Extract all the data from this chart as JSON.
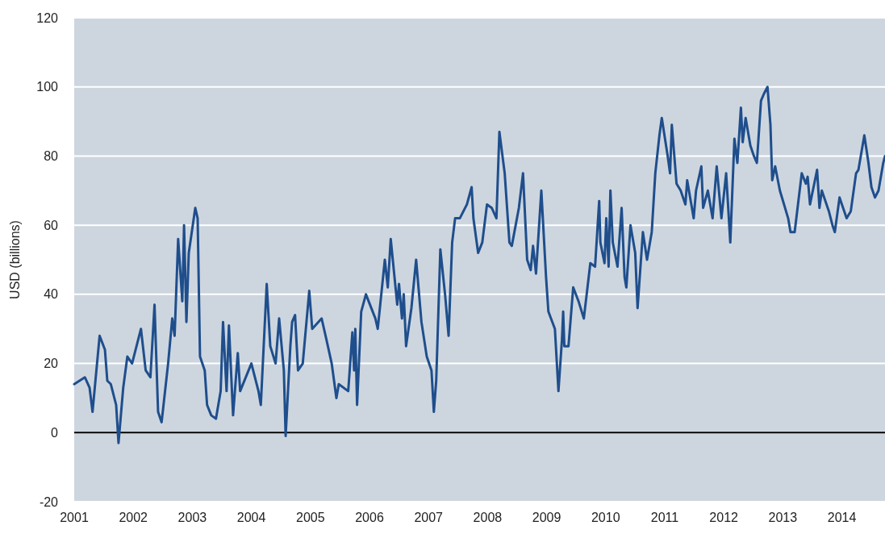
{
  "chart_data": {
    "type": "line",
    "ylabel": "USD (billions)",
    "xlim": [
      2001,
      2014.73
    ],
    "xticks": [
      2001,
      2002,
      2003,
      2004,
      2005,
      2006,
      2007,
      2008,
      2009,
      2010,
      2011,
      2012,
      2013,
      2014
    ],
    "ylim": [
      -20,
      120
    ],
    "yticks": [
      -20,
      0,
      20,
      40,
      60,
      80,
      100,
      120
    ],
    "grid": "y",
    "ref_lines": [
      {
        "axis": "y",
        "value": 0,
        "color": "#000000"
      }
    ],
    "series": [
      {
        "color": "#1f4e8c",
        "x": [
          2001.0,
          2001.18,
          2001.26,
          2001.31,
          2001.43,
          2001.52,
          2001.56,
          2001.62,
          2001.71,
          2001.75,
          2001.83,
          2001.9,
          2001.98,
          2002.13,
          2002.21,
          2002.29,
          2002.36,
          2002.42,
          2002.48,
          2002.59,
          2002.66,
          2002.7,
          2002.76,
          2002.83,
          2002.86,
          2002.9,
          2002.94,
          2003.05,
          2003.09,
          2003.13,
          2003.21,
          2003.25,
          2003.32,
          2003.4,
          2003.48,
          2003.52,
          2003.58,
          2003.62,
          2003.69,
          2003.77,
          2003.81,
          2004.0,
          2004.12,
          2004.16,
          2004.26,
          2004.32,
          2004.41,
          2004.47,
          2004.55,
          2004.58,
          2004.66,
          2004.69,
          2004.74,
          2004.79,
          2004.87,
          2004.98,
          2005.03,
          2005.19,
          2005.27,
          2005.36,
          2005.44,
          2005.48,
          2005.64,
          2005.71,
          2005.74,
          2005.76,
          2005.79,
          2005.86,
          2005.94,
          2006.1,
          2006.14,
          2006.26,
          2006.31,
          2006.36,
          2006.47,
          2006.5,
          2006.55,
          2006.58,
          2006.62,
          2006.71,
          2006.79,
          2006.88,
          2006.97,
          2007.05,
          2007.09,
          2007.13,
          2007.2,
          2007.28,
          2007.34,
          2007.4,
          2007.45,
          2007.53,
          2007.65,
          2007.73,
          2007.76,
          2007.84,
          2007.91,
          2007.99,
          2008.07,
          2008.15,
          2008.2,
          2008.29,
          2008.37,
          2008.41,
          2008.53,
          2008.6,
          2008.67,
          2008.73,
          2008.77,
          2008.82,
          2008.91,
          2008.99,
          2009.03,
          2009.14,
          2009.2,
          2009.26,
          2009.28,
          2009.3,
          2009.37,
          2009.45,
          2009.54,
          2009.63,
          2009.74,
          2009.82,
          2009.89,
          2009.91,
          2009.98,
          2010.01,
          2010.05,
          2010.08,
          2010.12,
          2010.2,
          2010.27,
          2010.32,
          2010.35,
          2010.42,
          2010.5,
          2010.54,
          2010.63,
          2010.7,
          2010.78,
          2010.84,
          2010.91,
          2010.95,
          2011.05,
          2011.09,
          2011.12,
          2011.2,
          2011.27,
          2011.35,
          2011.38,
          2011.49,
          2011.53,
          2011.62,
          2011.65,
          2011.73,
          2011.81,
          2011.88,
          2011.96,
          2012.04,
          2012.11,
          2012.18,
          2012.23,
          2012.29,
          2012.32,
          2012.37,
          2012.45,
          2012.51,
          2012.56,
          2012.63,
          2012.68,
          2012.74,
          2012.79,
          2012.82,
          2012.87,
          2012.95,
          2013.09,
          2013.13,
          2013.2,
          2013.32,
          2013.39,
          2013.42,
          2013.46,
          2013.58,
          2013.62,
          2013.66,
          2013.78,
          2013.84,
          2013.88,
          2013.96,
          2014.08,
          2014.15,
          2014.24,
          2014.28,
          2014.38,
          2014.45,
          2014.5,
          2014.56,
          2014.62,
          2014.7,
          2014.73
        ],
        "values": [
          14,
          16,
          13,
          6,
          28,
          24,
          15,
          14,
          8,
          -3,
          13,
          22,
          20,
          30,
          18,
          16,
          37,
          6,
          3,
          20,
          33,
          28,
          56,
          38,
          60,
          32,
          52,
          65,
          62,
          22,
          18,
          8,
          5,
          4,
          12,
          32,
          12,
          31,
          5,
          23,
          12,
          20,
          12,
          8,
          43,
          25,
          20,
          33,
          18,
          -1,
          25,
          32,
          34,
          18,
          20,
          41,
          30,
          33,
          27,
          20,
          10,
          14,
          12,
          29,
          18,
          30,
          8,
          35,
          40,
          33,
          30,
          50,
          42,
          56,
          37,
          43,
          33,
          40,
          25,
          36,
          50,
          32,
          22,
          18,
          6,
          15,
          53,
          40,
          28,
          55,
          62,
          62,
          66,
          71,
          62,
          52,
          55,
          66,
          65,
          62,
          87,
          75,
          55,
          54,
          65,
          75,
          50,
          47,
          54,
          46,
          70,
          45,
          35,
          30,
          12,
          27,
          35,
          25,
          25,
          42,
          38,
          33,
          49,
          48,
          67,
          55,
          49,
          62,
          48,
          70,
          55,
          48,
          65,
          45,
          42,
          60,
          52,
          36,
          58,
          50,
          58,
          75,
          86,
          91,
          80,
          75,
          89,
          72,
          70,
          66,
          73,
          62,
          70,
          77,
          65,
          70,
          62,
          77,
          62,
          75,
          55,
          85,
          78,
          94,
          84,
          91,
          83,
          80,
          78,
          96,
          98,
          100,
          89,
          73,
          77,
          70,
          62,
          58,
          58,
          75,
          72,
          74,
          66,
          76,
          65,
          70,
          64,
          60,
          58,
          68,
          62,
          64,
          75,
          76,
          86,
          78,
          71,
          68,
          70,
          78,
          80
        ]
      }
    ]
  }
}
